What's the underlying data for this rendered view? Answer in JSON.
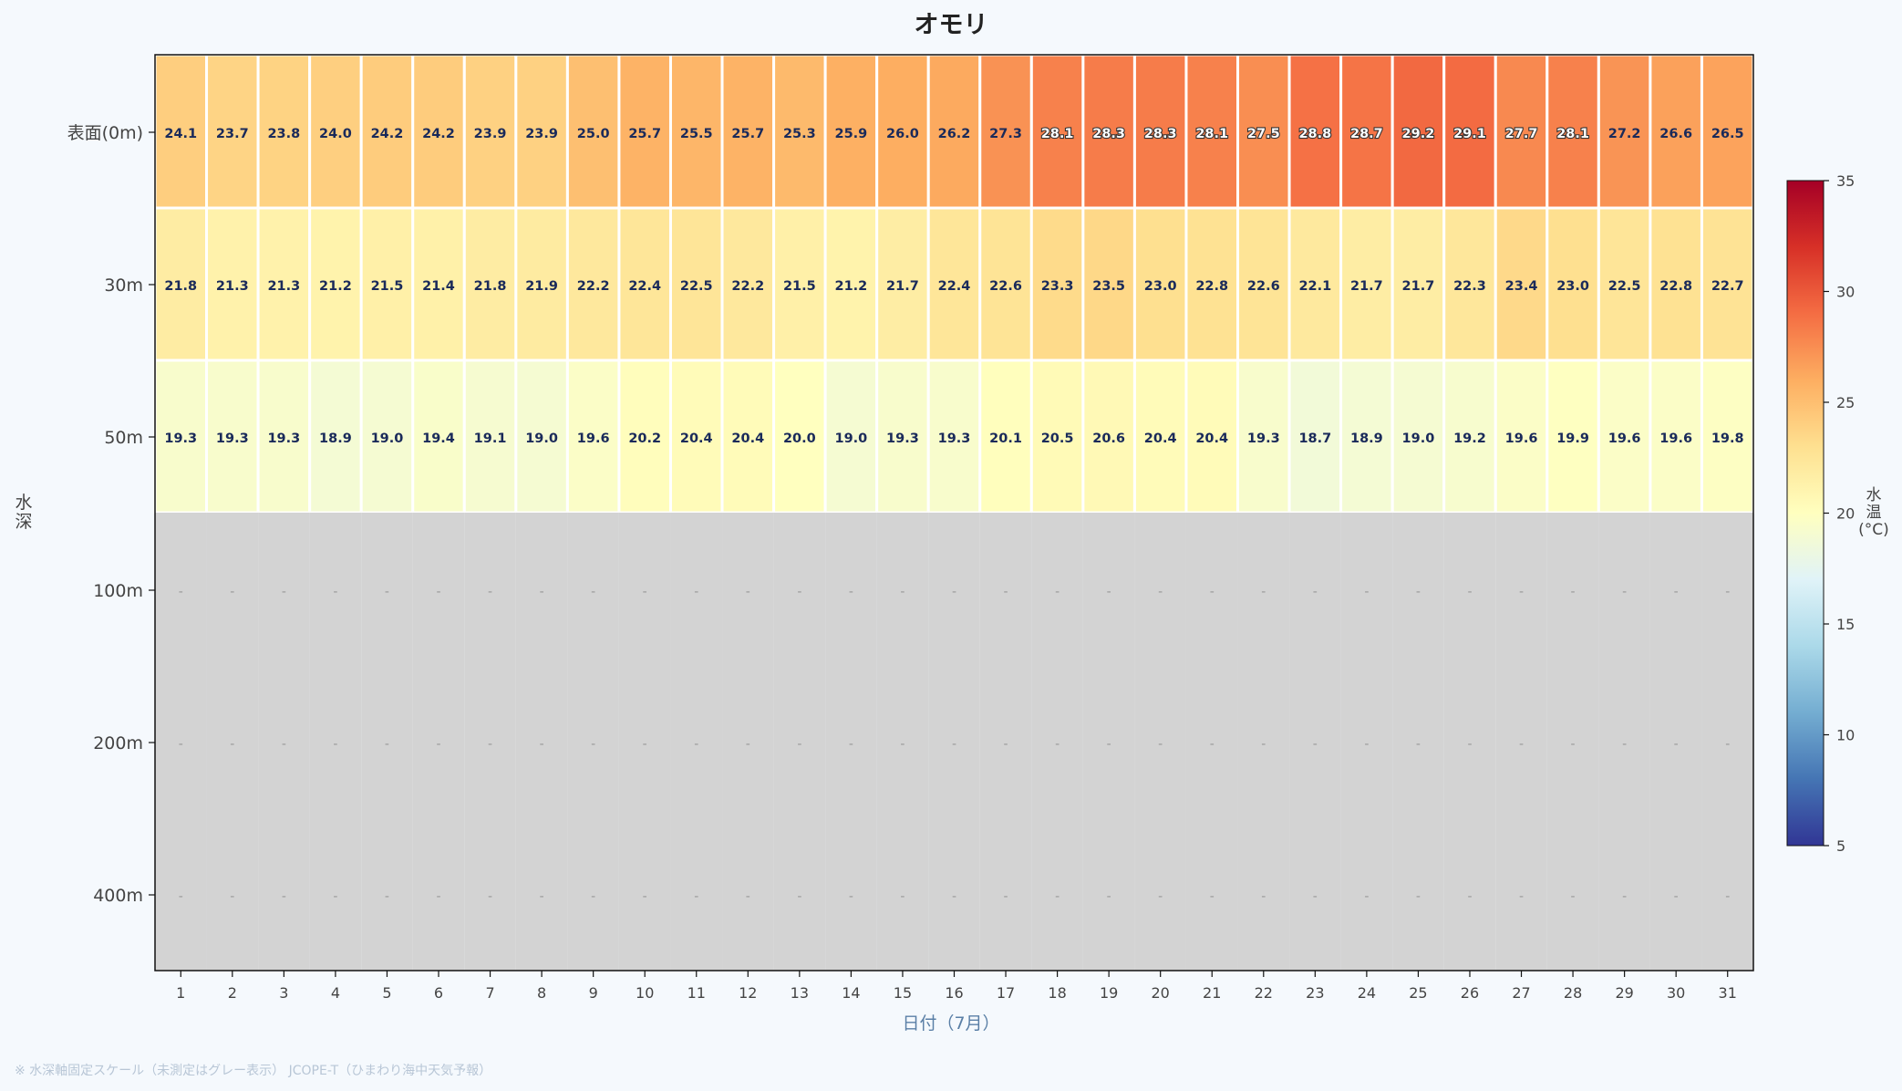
{
  "chart_data": {
    "type": "heatmap",
    "title": "オモリ",
    "xlabel": "日付（7月）",
    "ylabel": "水深",
    "colorbar_label": "水温(°C)",
    "colorbar_range": [
      5,
      35
    ],
    "colorbar_ticks": [
      5,
      10,
      15,
      20,
      25,
      30,
      35
    ],
    "colormap": "RdYlBu_r",
    "missing_color": "#d3d3d3",
    "missing_marker": "-",
    "x": [
      1,
      2,
      3,
      4,
      5,
      6,
      7,
      8,
      9,
      10,
      11,
      12,
      13,
      14,
      15,
      16,
      17,
      18,
      19,
      20,
      21,
      22,
      23,
      24,
      25,
      26,
      27,
      28,
      29,
      30,
      31
    ],
    "depths": [
      "表面(0m)",
      "30m",
      "50m",
      "100m",
      "200m",
      "400m"
    ],
    "values": [
      [
        24.1,
        23.7,
        23.8,
        24.0,
        24.2,
        24.2,
        23.9,
        23.9,
        25.0,
        25.7,
        25.5,
        25.7,
        25.3,
        25.9,
        26.0,
        26.2,
        27.3,
        28.1,
        28.3,
        28.3,
        28.1,
        27.5,
        28.8,
        28.7,
        29.2,
        29.1,
        27.7,
        28.1,
        27.2,
        26.6,
        26.5
      ],
      [
        21.8,
        21.3,
        21.3,
        21.2,
        21.5,
        21.4,
        21.8,
        21.9,
        22.2,
        22.4,
        22.5,
        22.2,
        21.5,
        21.2,
        21.7,
        22.4,
        22.6,
        23.3,
        23.5,
        23.0,
        22.8,
        22.6,
        22.1,
        21.7,
        21.7,
        22.3,
        23.4,
        23.0,
        22.5,
        22.8,
        22.7
      ],
      [
        19.3,
        19.3,
        19.3,
        18.9,
        19.0,
        19.4,
        19.1,
        19.0,
        19.6,
        20.2,
        20.4,
        20.4,
        20.0,
        19.0,
        19.3,
        19.3,
        20.1,
        20.5,
        20.6,
        20.4,
        20.4,
        19.3,
        18.7,
        18.9,
        19.0,
        19.2,
        19.6,
        19.9,
        19.6,
        19.6,
        19.8
      ],
      [
        null,
        null,
        null,
        null,
        null,
        null,
        null,
        null,
        null,
        null,
        null,
        null,
        null,
        null,
        null,
        null,
        null,
        null,
        null,
        null,
        null,
        null,
        null,
        null,
        null,
        null,
        null,
        null,
        null,
        null,
        null
      ],
      [
        null,
        null,
        null,
        null,
        null,
        null,
        null,
        null,
        null,
        null,
        null,
        null,
        null,
        null,
        null,
        null,
        null,
        null,
        null,
        null,
        null,
        null,
        null,
        null,
        null,
        null,
        null,
        null,
        null,
        null,
        null
      ],
      [
        null,
        null,
        null,
        null,
        null,
        null,
        null,
        null,
        null,
        null,
        null,
        null,
        null,
        null,
        null,
        null,
        null,
        null,
        null,
        null,
        null,
        null,
        null,
        null,
        null,
        null,
        null,
        null,
        null,
        null,
        null
      ]
    ]
  },
  "footnote": "※ 水深軸固定スケール（未測定はグレー表示） JCOPE-T（ひまわり海中天気予報）"
}
